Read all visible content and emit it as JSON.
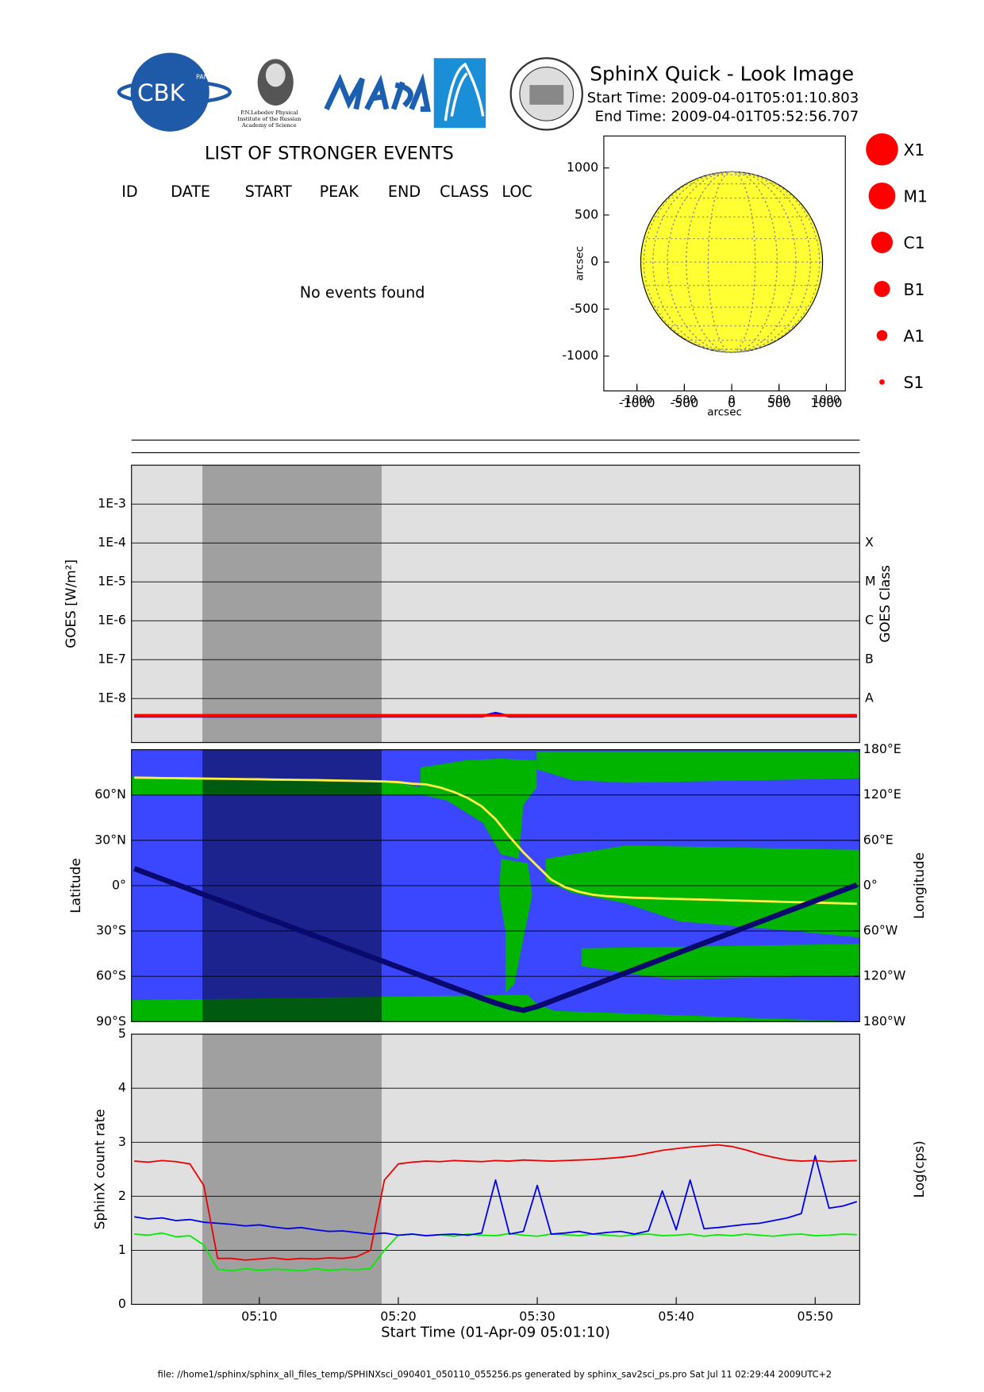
{
  "header": {
    "title": "SphinX Quick - Look Image",
    "start": "Start Time: 2009-04-01T05:01:10.803",
    "end": "End Time: 2009-04-01T05:52:56.707"
  },
  "logos": {
    "cbk": "CBK",
    "pan": "PAN",
    "lebedev": [
      "P.N.Lebedev Physical",
      "Institute of the Russian",
      "Academy of Science"
    ]
  },
  "events": {
    "title": "LIST OF STRONGER EVENTS",
    "columns": [
      "ID",
      "DATE",
      "START",
      "PEAK",
      "END",
      "CLASS",
      "LOC"
    ],
    "message": "No events found"
  },
  "flare_classes": [
    "X1",
    "M1",
    "C1",
    "B1",
    "A1",
    "S1"
  ],
  "footer": "file: //home1/sphinx/sphinx_all_files_temp/SPHINXsci_090401_050110_055256.ps generated by sphinx_sav2sci_ps.pro Sat Jul 11 02:29:44 2009UTC+2",
  "chart_data": [
    {
      "type": "disk",
      "xlabel": "arcsec",
      "ylabel": "arcsec",
      "xlim": [
        -1350,
        1200
      ],
      "ylim": [
        -1370,
        1340
      ],
      "xticks": [
        -1000,
        -500,
        0,
        500,
        1000
      ],
      "yticks": [
        -1000,
        -500,
        0,
        500,
        1000
      ],
      "radius": 960,
      "color": "#ffff33"
    },
    {
      "type": "line",
      "ylabel": "GOES [W/m²]",
      "y2label": "GOES Class",
      "log_y": true,
      "grid": true,
      "xlim": [
        0.8,
        53.2
      ],
      "ylim": [
        7.4e-10,
        0.01
      ],
      "yticks": [
        {
          "value": 1e-08,
          "label": "1E-8"
        },
        {
          "value": 1e-07,
          "label": "1E-7"
        },
        {
          "value": 1e-06,
          "label": "1E-6"
        },
        {
          "value": 1e-05,
          "label": "1E-5"
        },
        {
          "value": 0.0001,
          "label": "1E-4"
        },
        {
          "value": 0.001,
          "label": "1E-3"
        }
      ],
      "class_ticks": [
        {
          "value": 1e-08,
          "label": "A"
        },
        {
          "value": 1e-07,
          "label": "B"
        },
        {
          "value": 1e-06,
          "label": "C"
        },
        {
          "value": 1e-05,
          "label": "M"
        },
        {
          "value": 0.0001,
          "label": "X"
        }
      ],
      "shade": [
        5.9,
        18.8
      ],
      "x": [
        1,
        2,
        3,
        4,
        5,
        6,
        7,
        8,
        9,
        10,
        11,
        12,
        13,
        14,
        15,
        16,
        17,
        18,
        19,
        20,
        21,
        22,
        23,
        24,
        25,
        26,
        27,
        28,
        29,
        30,
        31,
        32,
        33,
        34,
        35,
        36,
        37,
        38,
        39,
        40,
        41,
        42,
        43,
        44,
        45,
        46,
        47,
        48,
        49,
        50,
        51,
        52,
        53
      ],
      "series": [
        {
          "color": "#0000ff",
          "values": [
            3.5e-09,
            3.5e-09,
            3.5e-09,
            3.5e-09,
            3.5e-09,
            3.5e-09,
            3.5e-09,
            3.5e-09,
            3.5e-09,
            3.5e-09,
            3.5e-09,
            3.5e-09,
            3.5e-09,
            3.5e-09,
            3.5e-09,
            3.5e-09,
            3.5e-09,
            3.5e-09,
            3.5e-09,
            3.5e-09,
            3.5e-09,
            3.5e-09,
            3.5e-09,
            3.5e-09,
            3.5e-09,
            3.5e-09,
            4.2e-09,
            3.5e-09,
            3.5e-09,
            3.5e-09,
            3.5e-09,
            3.5e-09,
            3.5e-09,
            3.5e-09,
            3.5e-09,
            3.5e-09,
            3.5e-09,
            3.5e-09,
            3.5e-09,
            3.5e-09,
            3.5e-09,
            3.5e-09,
            3.5e-09,
            3.5e-09,
            3.5e-09,
            3.5e-09,
            3.5e-09,
            3.5e-09,
            3.5e-09,
            3.5e-09,
            3.5e-09,
            3.5e-09,
            3.5e-09
          ]
        },
        {
          "color": "#ff0000",
          "values": [
            3.7e-09,
            3.7e-09,
            3.7e-09,
            3.7e-09,
            3.7e-09,
            3.7e-09,
            3.7e-09,
            3.7e-09,
            3.7e-09,
            3.7e-09,
            3.7e-09,
            3.7e-09,
            3.7e-09,
            3.7e-09,
            3.7e-09,
            3.7e-09,
            3.7e-09,
            3.7e-09,
            3.7e-09,
            3.7e-09,
            3.7e-09,
            3.7e-09,
            3.7e-09,
            3.7e-09,
            3.7e-09,
            3.7e-09,
            3.7e-09,
            3.7e-09,
            3.7e-09,
            3.7e-09,
            3.7e-09,
            3.7e-09,
            3.7e-09,
            3.7e-09,
            3.7e-09,
            3.7e-09,
            3.7e-09,
            3.7e-09,
            3.7e-09,
            3.7e-09,
            3.7e-09,
            3.7e-09,
            3.7e-09,
            3.7e-09,
            3.7e-09,
            3.7e-09,
            3.7e-09,
            3.7e-09,
            3.7e-09,
            3.7e-09,
            3.7e-09,
            3.7e-09,
            3.7e-09
          ]
        }
      ]
    },
    {
      "type": "map",
      "ylabel": "Latitude",
      "y2label": "Longitude",
      "grid": true,
      "xlim": [
        0.8,
        53.2
      ],
      "ylim": [
        -90,
        90
      ],
      "yticks": [
        {
          "value": -90,
          "label": "90°S"
        },
        {
          "value": -60,
          "label": "60°S"
        },
        {
          "value": -30,
          "label": "30°S"
        },
        {
          "value": 0,
          "label": "0°"
        },
        {
          "value": 30,
          "label": "30°N"
        },
        {
          "value": 60,
          "label": "60°N"
        }
      ],
      "y2lim": [
        -180,
        180
      ],
      "y2ticks": [
        {
          "value": -180,
          "label": "180°W"
        },
        {
          "value": -120,
          "label": "120°W"
        },
        {
          "value": -60,
          "label": "60°W"
        },
        {
          "value": 0,
          "label": "0°"
        },
        {
          "value": 60,
          "label": "60°E"
        },
        {
          "value": 120,
          "label": "120°E"
        },
        {
          "value": 180,
          "label": "180°E"
        }
      ],
      "shade": [
        5.9,
        18.8
      ],
      "x": [
        1,
        2,
        3,
        4,
        5,
        6,
        7,
        8,
        9,
        10,
        11,
        12,
        13,
        14,
        15,
        16,
        17,
        18,
        19,
        20,
        21,
        22,
        23,
        24,
        25,
        26,
        27,
        28,
        29,
        30,
        31,
        32,
        33,
        34,
        35,
        36,
        37,
        38,
        39,
        40,
        41,
        42,
        43,
        44,
        45,
        46,
        47,
        48,
        49,
        50,
        51,
        52,
        53
      ],
      "series": [
        {
          "color": "#ffee44",
          "axis": "y2",
          "values": [
            143,
            142.8,
            142.5,
            142.3,
            142,
            141.8,
            141.5,
            141.3,
            141,
            140.8,
            140.5,
            140.2,
            140,
            139.7,
            139.4,
            139,
            138.7,
            138.3,
            137.9,
            137,
            135,
            134,
            130,
            124,
            116,
            105,
            88,
            65,
            44,
            26,
            8,
            -2,
            -8,
            -12,
            -14,
            -15,
            -16,
            -16.5,
            -17,
            -17.5,
            -18,
            -18.5,
            -19,
            -19.5,
            -20,
            -20.5,
            -21,
            -21.5,
            -22,
            -22.5,
            -23,
            -23.5,
            -24
          ]
        },
        {
          "color": "#0a0a6e",
          "values": [
            11.3,
            7.9,
            4.4,
            1.0,
            -2.4,
            -5.9,
            -9.3,
            -12.7,
            -16.1,
            -19.6,
            -23.0,
            -26.4,
            -29.9,
            -33.3,
            -36.7,
            -40.2,
            -43.6,
            -47.0,
            -50.4,
            -53.9,
            -57.3,
            -60.7,
            -64.2,
            -67.6,
            -71.0,
            -74.5,
            -77.7,
            -80.5,
            -82.5,
            -80.0,
            -76.5,
            -73.0,
            -69.5,
            -66.0,
            -62.5,
            -59.0,
            -55.5,
            -52.0,
            -48.5,
            -45.0,
            -41.5,
            -38.0,
            -34.5,
            -31.0,
            -27.5,
            -24.0,
            -20.5,
            -17.0,
            -13.5,
            -10.0,
            -6.5,
            -3.0,
            0.5
          ]
        }
      ]
    },
    {
      "type": "line",
      "ylabel": "SphinX count rate",
      "y2label": "Log(cps)",
      "xlabel": "Start Time (01-Apr-09 05:01:10)",
      "grid": true,
      "xlim": [
        0.8,
        53.2
      ],
      "ylim": [
        0,
        5
      ],
      "yticks": [
        0,
        1,
        2,
        3,
        4,
        5
      ],
      "xticks": [
        {
          "value": 10,
          "label": "05:10"
        },
        {
          "value": 20,
          "label": "05:20"
        },
        {
          "value": 30,
          "label": "05:30"
        },
        {
          "value": 40,
          "label": "05:40"
        },
        {
          "value": 50,
          "label": "05:50"
        }
      ],
      "shade": [
        5.9,
        18.8
      ],
      "x": [
        1,
        2,
        3,
        4,
        5,
        6,
        7,
        8,
        9,
        10,
        11,
        12,
        13,
        14,
        15,
        16,
        17,
        18,
        19,
        20,
        21,
        22,
        23,
        24,
        25,
        26,
        27,
        28,
        29,
        30,
        31,
        32,
        33,
        34,
        35,
        36,
        37,
        38,
        39,
        40,
        41,
        42,
        43,
        44,
        45,
        46,
        47,
        48,
        49,
        50,
        51,
        52,
        53
      ],
      "series": [
        {
          "color": "#00ee00",
          "values": [
            1.3,
            1.28,
            1.32,
            1.25,
            1.27,
            1.1,
            0.65,
            0.62,
            0.66,
            0.63,
            0.65,
            0.64,
            0.62,
            0.66,
            0.63,
            0.65,
            0.64,
            0.66,
            1.0,
            1.28,
            1.3,
            1.27,
            1.29,
            1.26,
            1.3,
            1.28,
            1.27,
            1.31,
            1.28,
            1.26,
            1.3,
            1.29,
            1.27,
            1.3,
            1.28,
            1.26,
            1.29,
            1.3,
            1.27,
            1.28,
            1.3,
            1.26,
            1.29,
            1.27,
            1.3,
            1.28,
            1.26,
            1.29,
            1.3,
            1.27,
            1.28,
            1.3,
            1.29
          ]
        },
        {
          "color": "#0000ee",
          "values": [
            1.62,
            1.58,
            1.6,
            1.55,
            1.57,
            1.52,
            1.5,
            1.48,
            1.45,
            1.47,
            1.43,
            1.4,
            1.42,
            1.38,
            1.35,
            1.36,
            1.33,
            1.3,
            1.32,
            1.28,
            1.3,
            1.27,
            1.29,
            1.3,
            1.28,
            1.32,
            2.3,
            1.3,
            1.35,
            2.2,
            1.3,
            1.32,
            1.35,
            1.3,
            1.33,
            1.35,
            1.3,
            1.36,
            2.1,
            1.38,
            2.3,
            1.4,
            1.42,
            1.45,
            1.48,
            1.5,
            1.55,
            1.6,
            1.68,
            2.75,
            1.78,
            1.82,
            1.9
          ]
        },
        {
          "color": "#ee0000",
          "values": [
            2.65,
            2.63,
            2.66,
            2.64,
            2.6,
            2.2,
            0.85,
            0.85,
            0.82,
            0.84,
            0.86,
            0.83,
            0.85,
            0.84,
            0.86,
            0.85,
            0.88,
            1.0,
            2.3,
            2.6,
            2.63,
            2.65,
            2.64,
            2.66,
            2.65,
            2.64,
            2.66,
            2.65,
            2.67,
            2.66,
            2.65,
            2.66,
            2.67,
            2.68,
            2.7,
            2.72,
            2.75,
            2.8,
            2.85,
            2.88,
            2.91,
            2.93,
            2.95,
            2.92,
            2.86,
            2.78,
            2.72,
            2.67,
            2.65,
            2.66,
            2.64,
            2.65,
            2.66
          ]
        }
      ]
    }
  ]
}
